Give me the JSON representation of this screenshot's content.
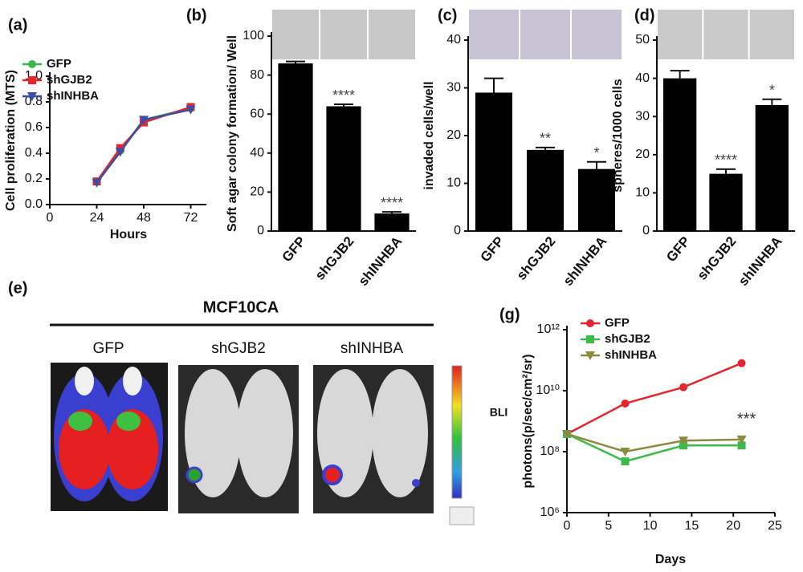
{
  "chart_data": [
    {
      "type": "line",
      "panel": "(a)",
      "ylabel": "Cell proliferation (MTS)",
      "xlabel": "Hours",
      "x": [
        24,
        36,
        48,
        72
      ],
      "series": [
        {
          "name": "GFP",
          "color": "#3cb44b",
          "values": [
            0.18,
            0.42,
            0.66,
            0.75
          ]
        },
        {
          "name": "shGJB2",
          "color": "#e8262b",
          "values": [
            0.18,
            0.44,
            0.64,
            0.76
          ]
        },
        {
          "name": "shINHBA",
          "color": "#3a4fa3",
          "values": [
            0.17,
            0.41,
            0.66,
            0.74
          ]
        }
      ],
      "xlim": [
        0,
        80
      ],
      "xticks": [
        0,
        24,
        48,
        72
      ],
      "ylim": [
        0,
        1
      ],
      "yticks": [
        {
          "value": 0,
          "label": "0.0"
        },
        0.2,
        0.4,
        0.6,
        0.8,
        {
          "value": 1,
          "label": "1.0"
        }
      ]
    },
    {
      "type": "bar",
      "panel": "(b)",
      "ylabel": "Soft agar colony formation/ Well",
      "color": "#000000",
      "categories": [
        "GFP",
        "shGJB2",
        "shINHBA"
      ],
      "values": [
        86,
        64,
        9
      ],
      "errors": [
        1,
        1,
        0.8
      ],
      "significance": [
        null,
        "****",
        "****"
      ],
      "ylim": [
        0,
        100
      ],
      "yticks": [
        0,
        20,
        40,
        60,
        80,
        100
      ]
    },
    {
      "type": "bar",
      "panel": "(c)",
      "ylabel": "invaded cells/well",
      "color": "#000000",
      "categories": [
        "GFP",
        "shGJB2",
        "shINHBA"
      ],
      "values": [
        29,
        17,
        13
      ],
      "errors": [
        3,
        0.5,
        1.5
      ],
      "significance": [
        null,
        "**",
        "*"
      ],
      "ylim": [
        0,
        40
      ],
      "yticks": [
        0,
        10,
        20,
        30,
        40
      ]
    },
    {
      "type": "bar",
      "panel": "(d)",
      "ylabel": "spheres/1000 cells",
      "color": "#000000",
      "categories": [
        "GFP",
        "shGJB2",
        "shINHBA"
      ],
      "values": [
        40,
        15,
        33
      ],
      "errors": [
        2,
        1.2,
        1.5
      ],
      "significance": [
        null,
        "****",
        "*"
      ],
      "ylim": [
        0,
        50
      ],
      "yticks": [
        0,
        10,
        20,
        30,
        40,
        50
      ]
    },
    {
      "type": "line",
      "panel": "(g)",
      "ylabel": "photons(p/sec/cm²/sr)",
      "ylabel2": "BLI",
      "xlabel": "Days",
      "annotation": "***",
      "yscale": "log",
      "x": [
        0,
        7,
        14,
        21
      ],
      "series": [
        {
          "name": "GFP",
          "color": "#e3262e",
          "values": [
            380000000,
            3800000000,
            13000000000,
            80000000000
          ]
        },
        {
          "name": "shGJB2",
          "color": "#3dbb4a",
          "values": [
            380000000,
            48000000,
            160000000,
            160000000
          ]
        },
        {
          "name": "shINHBA",
          "color": "#8b8a3e",
          "values": [
            380000000,
            100000000,
            230000000,
            250000000
          ]
        }
      ],
      "xlim": [
        0,
        25
      ],
      "xticks": [
        0,
        5,
        10,
        15,
        20,
        25
      ],
      "ylim": [
        1000000,
        1000000000000
      ],
      "yticks": [
        {
          "value": 1000000,
          "label": "10⁶"
        },
        {
          "value": 100000000,
          "label": "10⁸"
        },
        {
          "value": 10000000000,
          "label": "10¹⁰"
        },
        {
          "value": 1000000000000,
          "label": "10¹²"
        }
      ]
    }
  ],
  "figure_e": {
    "panel": "(e)",
    "title": "MCF10CA",
    "groups": [
      "GFP",
      "shGJB2",
      "shINHBA"
    ]
  }
}
